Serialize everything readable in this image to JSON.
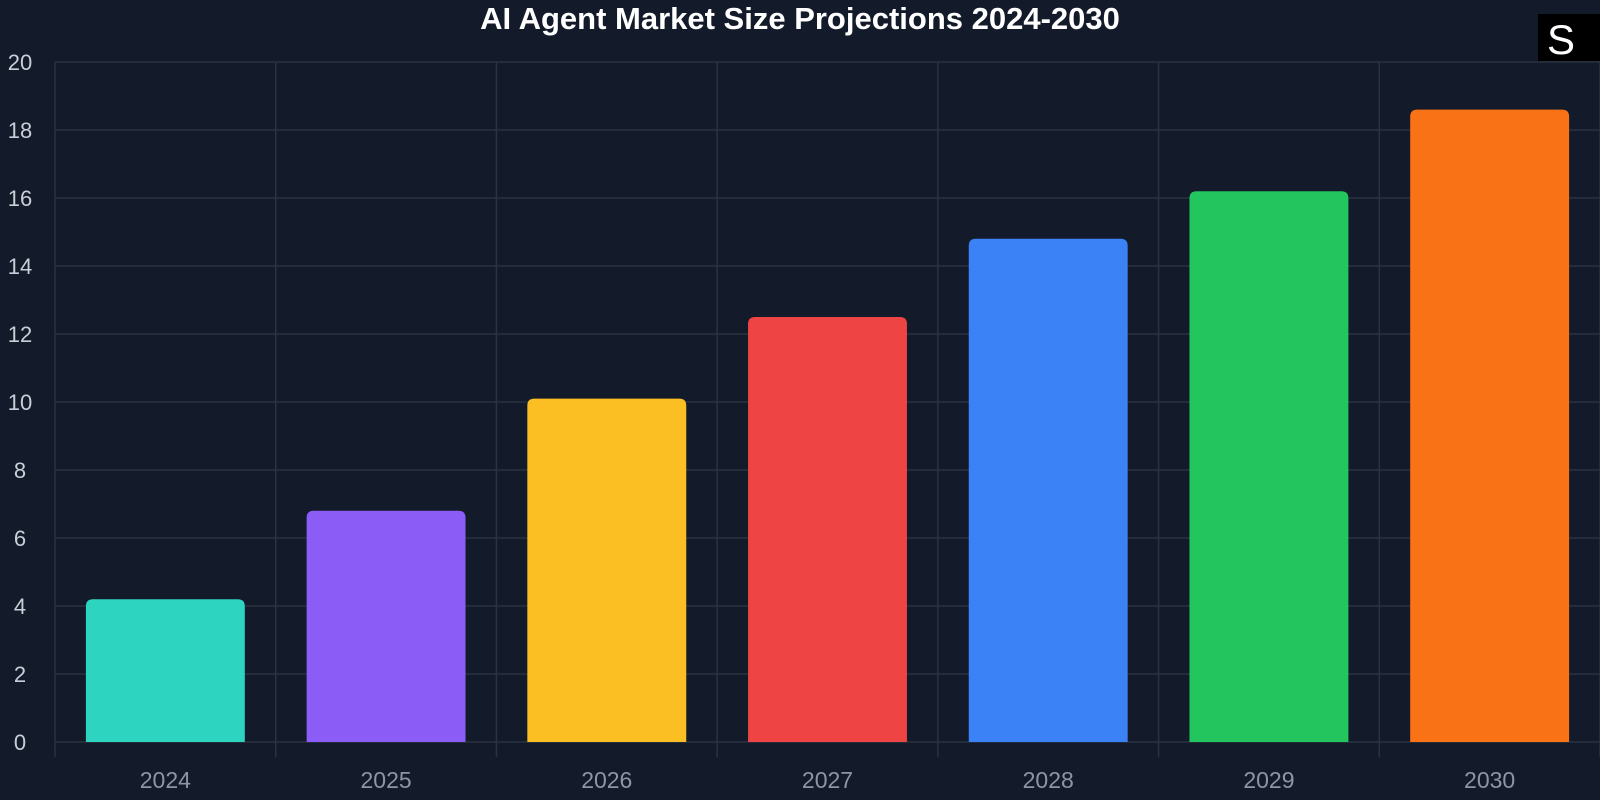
{
  "chart_data": {
    "type": "bar",
    "title": "AI Agent Market Size Projections 2024-2030",
    "xlabel": "",
    "ylabel": "",
    "categories": [
      "2024",
      "2025",
      "2026",
      "2027",
      "2028",
      "2029",
      "2030"
    ],
    "values": [
      4.2,
      6.8,
      10.1,
      12.5,
      14.8,
      16.2,
      18.6
    ],
    "ylim": [
      0,
      20
    ],
    "yticks": [
      0,
      2,
      4,
      6,
      8,
      10,
      12,
      14,
      16,
      18,
      20
    ],
    "grid": true,
    "legend": "none",
    "colors": [
      "#2dd4bf",
      "#8b5cf6",
      "#fbbf24",
      "#ef4444",
      "#3b82f6",
      "#22c55e",
      "#f97316"
    ]
  },
  "theme": {
    "background": "#131a29",
    "grid_color": "#2b3342",
    "title_color": "#ffffff"
  },
  "logo": {
    "letter": "S",
    "icon": "s-logo-icon",
    "background": "#000000",
    "color": "#ffffff"
  }
}
